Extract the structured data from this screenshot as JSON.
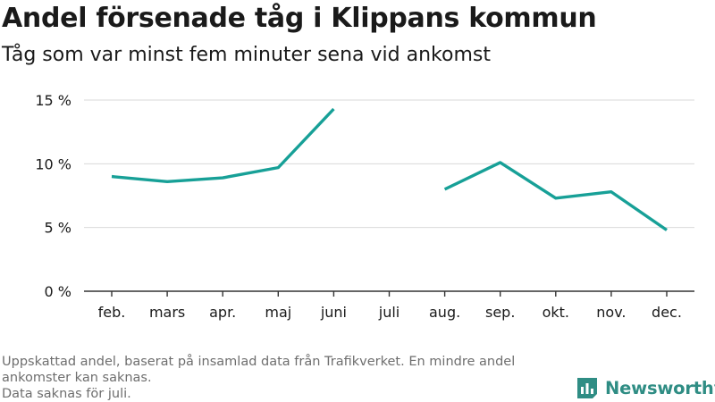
{
  "chart_data": {
    "type": "line",
    "title": "Andel försenade tåg i Klippans kommun",
    "subtitle": "Tåg som var minst fem minuter sena vid ankomst",
    "categories": [
      "feb.",
      "mars",
      "apr.",
      "maj",
      "juni",
      "juli",
      "aug.",
      "sep.",
      "okt.",
      "nov.",
      "dec."
    ],
    "series": [
      {
        "values": [
          9.0,
          8.6,
          8.9,
          9.7,
          14.3,
          null,
          8.0,
          10.1,
          7.3,
          7.8,
          4.8
        ],
        "color": "#17a097"
      }
    ],
    "yticks": [
      {
        "value": 0,
        "label": "0 %"
      },
      {
        "value": 5,
        "label": "5 %"
      },
      {
        "value": 10,
        "label": "10 %"
      },
      {
        "value": 15,
        "label": "15 %"
      }
    ],
    "ylim": [
      0,
      15
    ],
    "grid": true,
    "xlabel": "",
    "ylabel": ""
  },
  "footnote": {
    "line1": "Uppskattad andel, baserat på insamlad data från Trafikverket. En mindre andel ankomster kan saknas.",
    "line2": "Data saknas för juli."
  },
  "brand": {
    "name": "Newsworthy",
    "icon": "newsworthy-logo-icon",
    "color": "#2f8d84"
  }
}
